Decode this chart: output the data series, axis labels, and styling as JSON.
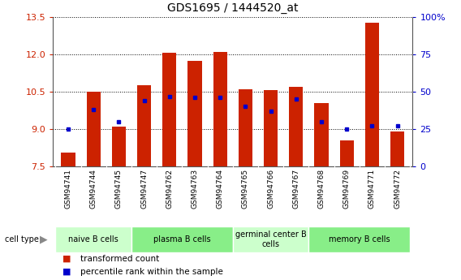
{
  "title": "GDS1695 / 1444520_at",
  "samples": [
    "GSM94741",
    "GSM94744",
    "GSM94745",
    "GSM94747",
    "GSM94762",
    "GSM94763",
    "GSM94764",
    "GSM94765",
    "GSM94766",
    "GSM94767",
    "GSM94768",
    "GSM94769",
    "GSM94771",
    "GSM94772"
  ],
  "transformed_count": [
    8.05,
    10.5,
    9.1,
    10.75,
    12.05,
    11.75,
    12.1,
    10.6,
    10.55,
    10.7,
    10.05,
    8.55,
    13.25,
    8.9
  ],
  "percentile_rank": [
    25,
    38,
    30,
    44,
    47,
    46,
    46,
    40,
    37,
    45,
    30,
    25,
    27,
    27
  ],
  "y_min": 7.5,
  "y_max": 13.5,
  "y_ticks": [
    7.5,
    9.0,
    10.5,
    12.0,
    13.5
  ],
  "y_right_ticks": [
    0,
    25,
    50,
    75,
    100
  ],
  "y_right_labels": [
    "0",
    "25",
    "50",
    "75",
    "100%"
  ],
  "cell_groups": [
    {
      "label": "naive B cells",
      "start": 0,
      "end": 3,
      "color": "#ccffcc"
    },
    {
      "label": "plasma B cells",
      "start": 3,
      "end": 7,
      "color": "#88ee88"
    },
    {
      "label": "germinal center B\ncells",
      "start": 7,
      "end": 10,
      "color": "#ccffcc"
    },
    {
      "label": "memory B cells",
      "start": 10,
      "end": 14,
      "color": "#88ee88"
    }
  ],
  "bar_color": "#cc2200",
  "dot_color": "#0000cc",
  "bar_width": 0.55,
  "right_ylabel_color": "#0000cc",
  "bg_color": "#ffffff",
  "sample_label_bg": "#cccccc",
  "grid_color": "#000000",
  "legend_red_label": "transformed count",
  "legend_blue_label": "percentile rank within the sample"
}
